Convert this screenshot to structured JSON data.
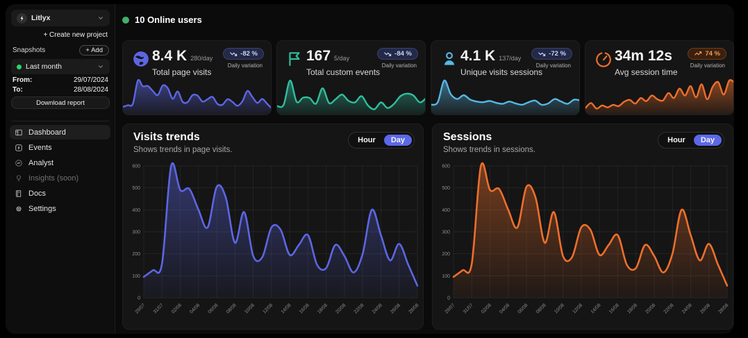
{
  "colors": {
    "accent_purple": "#5c66e2",
    "accent_green": "#2fbf9f",
    "accent_blue": "#58b7e3",
    "accent_orange": "#ed6f2b",
    "online_dot": "#41b06a",
    "snapshot_dot": "#2ed467",
    "toggle_active": "#5b68e8"
  },
  "sidebar": {
    "project_name": "Litlyx",
    "create_project_label": "+ Create new project",
    "snapshots_label": "Snapshots",
    "add_label": "+ Add",
    "range_selected": "Last month",
    "from_label": "From:",
    "from_value": "29/07/2024",
    "to_label": "To:",
    "to_value": "28/08/2024",
    "download_label": "Download report",
    "nav": [
      {
        "label": "Dashboard",
        "active": true
      },
      {
        "label": "Events",
        "active": false
      },
      {
        "label": "Analyst",
        "active": false
      },
      {
        "label": "Insights (soon)",
        "active": false,
        "disabled": true
      },
      {
        "label": "Docs",
        "active": false
      },
      {
        "label": "Settings",
        "active": false
      }
    ]
  },
  "header": {
    "online_label": "10 Online users"
  },
  "stats": [
    {
      "icon": "globe-icon",
      "value": "8.4 K",
      "per_day": "280/day",
      "title": "Total page visits",
      "badge": "-82 %",
      "trend": "down",
      "note": "Daily variation",
      "color": "#5c66e2",
      "badge_bg": "#232947",
      "badge_fg": "#c9d2fa",
      "badge_border": "#3a4170",
      "spark": [
        95,
        125,
        155,
        600,
        490,
        495,
        400,
        320,
        505,
        455,
        250,
        390,
        190,
        185,
        320,
        310,
        195,
        240,
        285,
        150,
        135,
        240,
        190,
        115,
        200,
        400,
        285,
        170,
        245,
        150,
        55
      ]
    },
    {
      "icon": "flag-icon",
      "value": "167",
      "per_day": "5/day",
      "title": "Total custom events",
      "badge": "-84 %",
      "trend": "down",
      "note": "Daily variation",
      "color": "#2fbf9f",
      "badge_bg": "#232947",
      "badge_fg": "#c9d2fa",
      "badge_border": "#3a4170",
      "spark": [
        18,
        22,
        100,
        32,
        45,
        44,
        26,
        75,
        28,
        40,
        55,
        35,
        30,
        50,
        20,
        8,
        30,
        12,
        25,
        50,
        58,
        52,
        30,
        45
      ]
    },
    {
      "icon": "user-icon",
      "value": "4.1 K",
      "per_day": "137/day",
      "title": "Unique visits sessions",
      "badge": "-72 %",
      "trend": "down",
      "note": "Daily variation",
      "color": "#58b7e3",
      "badge_bg": "#232947",
      "badge_fg": "#c9d2fa",
      "badge_border": "#3a4170",
      "spark": [
        22,
        30,
        98,
        55,
        40,
        52,
        38,
        32,
        30,
        34,
        28,
        25,
        32,
        26,
        22,
        30,
        35,
        22,
        26,
        40,
        32,
        25,
        38,
        35
      ]
    },
    {
      "icon": "timer-icon",
      "value": "34m 12s",
      "per_day": "",
      "title": "Avg session time",
      "badge": "74 %",
      "trend": "up",
      "note": "Daily variation",
      "color": "#ed6f2b",
      "badge_bg": "#3b200f",
      "badge_fg": "#f09a52",
      "badge_border": "#6e3d17",
      "spark": [
        12,
        28,
        10,
        20,
        14,
        22,
        18,
        32,
        38,
        26,
        44,
        34,
        52,
        40,
        36,
        60,
        44,
        74,
        52,
        82,
        46,
        88,
        40,
        80,
        95,
        55,
        100,
        92
      ]
    }
  ],
  "chart_data": [
    {
      "type": "area",
      "title": "Visits trends",
      "subtitle": "Shows trends in page visits.",
      "toggle": [
        "Hour",
        "Day"
      ],
      "selected_toggle": "Day",
      "color": "#5c66e2",
      "ylim": [
        0,
        600
      ],
      "yticks": [
        0,
        100,
        200,
        300,
        400,
        500,
        600
      ],
      "x_labels": [
        "29/07",
        "31/07",
        "02/08",
        "04/08",
        "06/08",
        "08/08",
        "10/08",
        "12/08",
        "14/08",
        "16/08",
        "18/08",
        "20/08",
        "22/08",
        "24/08",
        "26/08",
        "28/08"
      ],
      "values": [
        95,
        125,
        155,
        600,
        490,
        495,
        400,
        320,
        505,
        455,
        250,
        390,
        190,
        185,
        320,
        310,
        195,
        240,
        285,
        150,
        135,
        240,
        190,
        115,
        200,
        400,
        285,
        170,
        245,
        150,
        55
      ],
      "grid": true,
      "legend": "none"
    },
    {
      "type": "area",
      "title": "Sessions",
      "subtitle": "Shows trends in sessions.",
      "toggle": [
        "Hour",
        "Day"
      ],
      "selected_toggle": "Day",
      "color": "#ed6f2b",
      "ylim": [
        0,
        600
      ],
      "yticks": [
        0,
        100,
        200,
        300,
        400,
        500,
        600
      ],
      "x_labels": [
        "29/07",
        "31/07",
        "02/08",
        "04/08",
        "06/08",
        "08/08",
        "10/08",
        "12/08",
        "14/08",
        "16/08",
        "18/08",
        "20/08",
        "22/08",
        "24/08",
        "26/08",
        "28/08"
      ],
      "values": [
        95,
        125,
        155,
        600,
        490,
        495,
        400,
        320,
        505,
        455,
        250,
        390,
        190,
        185,
        320,
        310,
        195,
        240,
        285,
        150,
        135,
        240,
        190,
        115,
        200,
        400,
        285,
        170,
        245,
        150,
        55
      ],
      "grid": true,
      "legend": "none"
    }
  ]
}
